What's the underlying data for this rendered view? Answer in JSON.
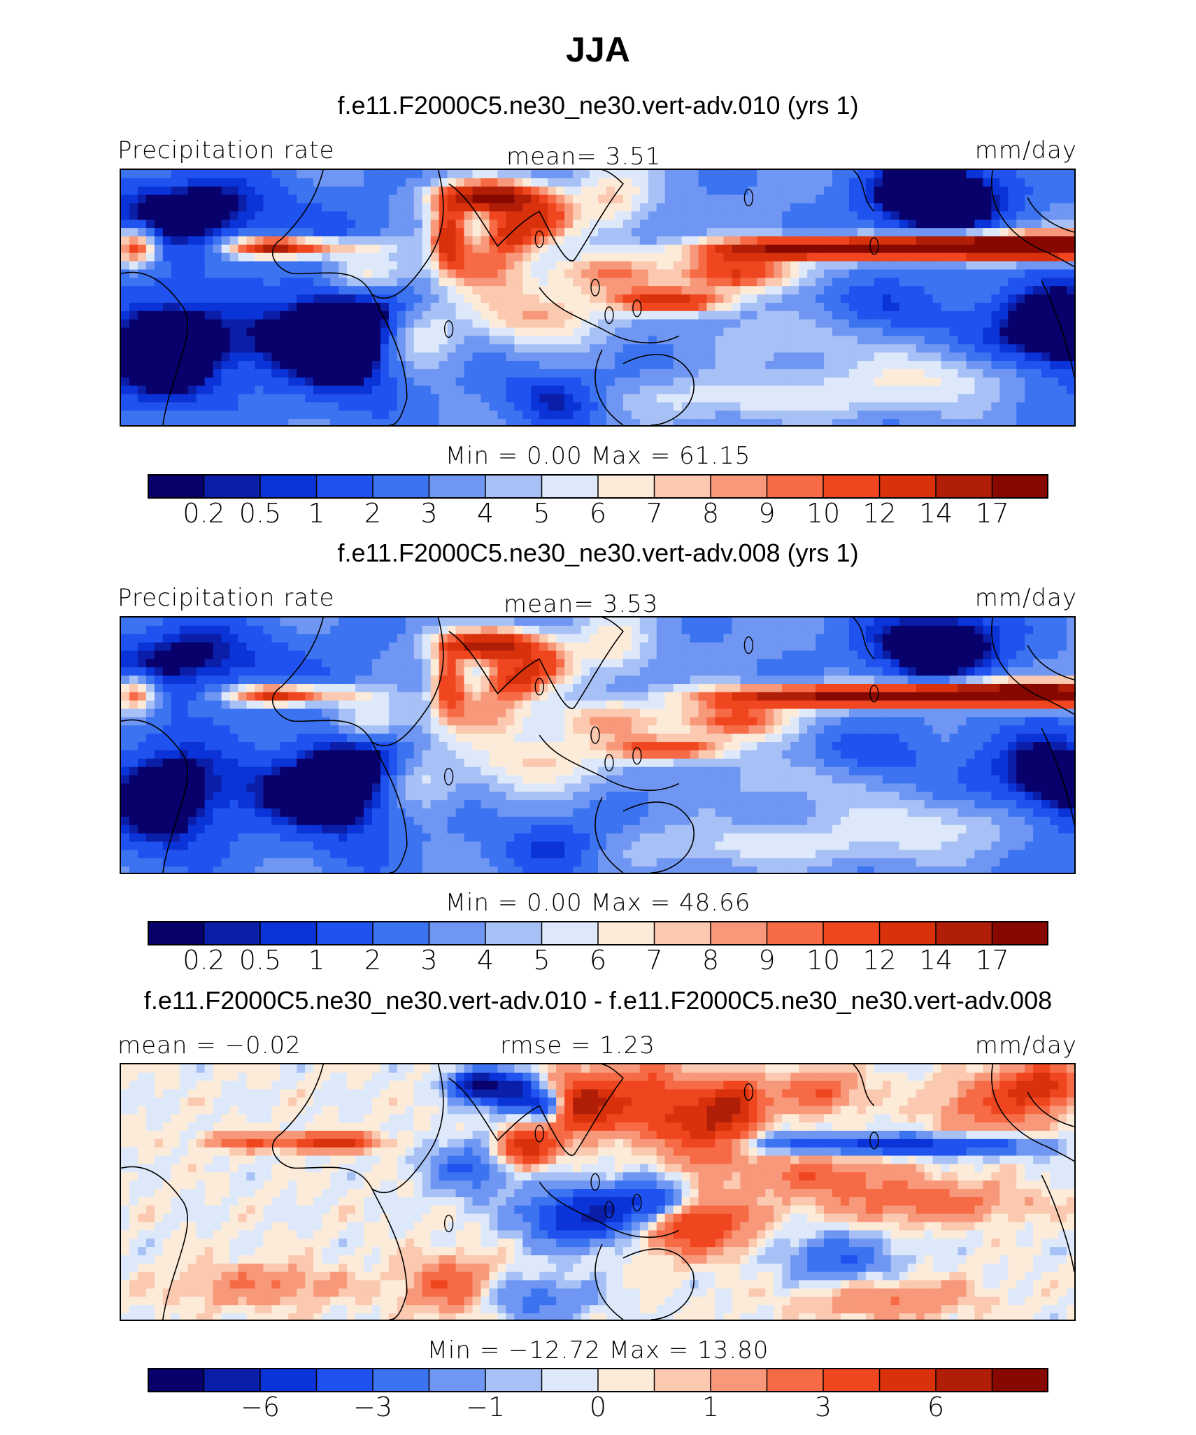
{
  "season": "JJA",
  "units": "mm/day",
  "variable": "Precipitation rate",
  "abs_palette": [
    "#08006b",
    "#0b1ea8",
    "#0a33d8",
    "#1f52ef",
    "#3c73f1",
    "#6f96f2",
    "#a7c1f6",
    "#dde9fa",
    "#fdebd9",
    "#fbc8b0",
    "#f7987a",
    "#f66a45",
    "#f0461f",
    "#d9310c",
    "#b01e08",
    "#860801"
  ],
  "abs_ticks": [
    "0.2",
    "0.5",
    "1",
    "2",
    "3",
    "4",
    "5",
    "6",
    "7",
    "8",
    "9",
    "10",
    "12",
    "14",
    "17"
  ],
  "diff_palette": [
    "#08006b",
    "#0b1ea8",
    "#0a33d8",
    "#1f52ef",
    "#3c73f1",
    "#6f96f2",
    "#a7c1f6",
    "#dde9fa",
    "#fdebd9",
    "#fbc8b0",
    "#f7987a",
    "#f66a45",
    "#f0461f",
    "#d9310c",
    "#b01e08",
    "#860801"
  ],
  "diff_ticks": [
    {
      "label": "−6",
      "boundary": 2
    },
    {
      "label": "−3",
      "boundary": 4
    },
    {
      "label": "−1",
      "boundary": 6
    },
    {
      "label": "0",
      "boundary": 8
    },
    {
      "label": "1",
      "boundary": 10
    },
    {
      "label": "3",
      "boundary": 12
    },
    {
      "label": "6",
      "boundary": 14
    }
  ],
  "panels": [
    {
      "title": "f.e11.F2000C5.ne30_ne30.vert-adv.010 (yrs 1)",
      "left_label": "Precipitation rate",
      "center_label": "mean=   3.51",
      "right_label": "mm/day",
      "minmax": "Min  =     0.00  Max  =   61.15"
    },
    {
      "title": "f.e11.F2000C5.ne30_ne30.vert-adv.008 (yrs 1)",
      "left_label": "Precipitation rate",
      "center_label": "mean=   3.53",
      "right_label": "mm/day",
      "minmax": "Min  =     0.00  Max  =   48.66"
    },
    {
      "title": "f.e11.F2000C5.ne30_ne30.vert-adv.010 - f.e11.F2000C5.ne30_ne30.vert-adv.008",
      "left_label": "mean  =  −0.02",
      "center_label": "rmse  =    1.23",
      "right_label": "mm/day",
      "minmax": "Min  =  −12.72  Max  =   13.80"
    }
  ],
  "chart_data": [
    {
      "type": "heatmap",
      "title": "f.e11.F2000C5.ne30_ne30.vert-adv.010 (yrs 1)",
      "variable": "Precipitation rate",
      "units": "mm/day",
      "season": "JJA",
      "mean": 3.51,
      "min": 0.0,
      "max": 61.15,
      "levels": [
        0.2,
        0.5,
        1,
        2,
        3,
        4,
        5,
        6,
        7,
        8,
        9,
        10,
        12,
        14,
        17
      ]
    },
    {
      "type": "heatmap",
      "title": "f.e11.F2000C5.ne30_ne30.vert-adv.008 (yrs 1)",
      "variable": "Precipitation rate",
      "units": "mm/day",
      "season": "JJA",
      "mean": 3.53,
      "min": 0.0,
      "max": 48.66,
      "levels": [
        0.2,
        0.5,
        1,
        2,
        3,
        4,
        5,
        6,
        7,
        8,
        9,
        10,
        12,
        14,
        17
      ]
    },
    {
      "type": "heatmap",
      "title": "f.e11.F2000C5.ne30_ne30.vert-adv.010 - f.e11.F2000C5.ne30_ne30.vert-adv.008",
      "units": "mm/day",
      "season": "JJA",
      "mean": -0.02,
      "rmse": 1.23,
      "min": -12.72,
      "max": 13.8,
      "tick_labels": [
        -6,
        -3,
        -1,
        0,
        1,
        3,
        6
      ]
    }
  ]
}
